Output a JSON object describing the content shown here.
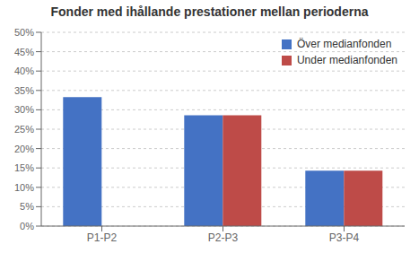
{
  "chart_data": {
    "type": "bar",
    "title": "Fonder med ihållande prestationer mellan perioderna",
    "categories": [
      "P1-P2",
      "P2-P3",
      "P3-P4"
    ],
    "series": [
      {
        "name": "Över medianfonden",
        "color": "#4472C4",
        "values": [
          0.333,
          0.286,
          0.143
        ]
      },
      {
        "name": "Under medianfonden",
        "color": "#BE4B48",
        "values": [
          null,
          0.286,
          0.143
        ]
      }
    ],
    "ylim": [
      0,
      0.5
    ],
    "yticks": [
      {
        "value": 0,
        "label": "0%"
      },
      {
        "value": 0.05,
        "label": "5%"
      },
      {
        "value": 0.1,
        "label": "10%"
      },
      {
        "value": 0.15,
        "label": "15%"
      },
      {
        "value": 0.2,
        "label": "20%"
      },
      {
        "value": 0.25,
        "label": "25%"
      },
      {
        "value": 0.3,
        "label": "30%"
      },
      {
        "value": 0.35,
        "label": "35%"
      },
      {
        "value": 0.4,
        "label": "40%"
      },
      {
        "value": 0.45,
        "label": "45%"
      },
      {
        "value": 0.5,
        "label": "50%"
      }
    ],
    "grid": true,
    "legend": "upper right"
  }
}
